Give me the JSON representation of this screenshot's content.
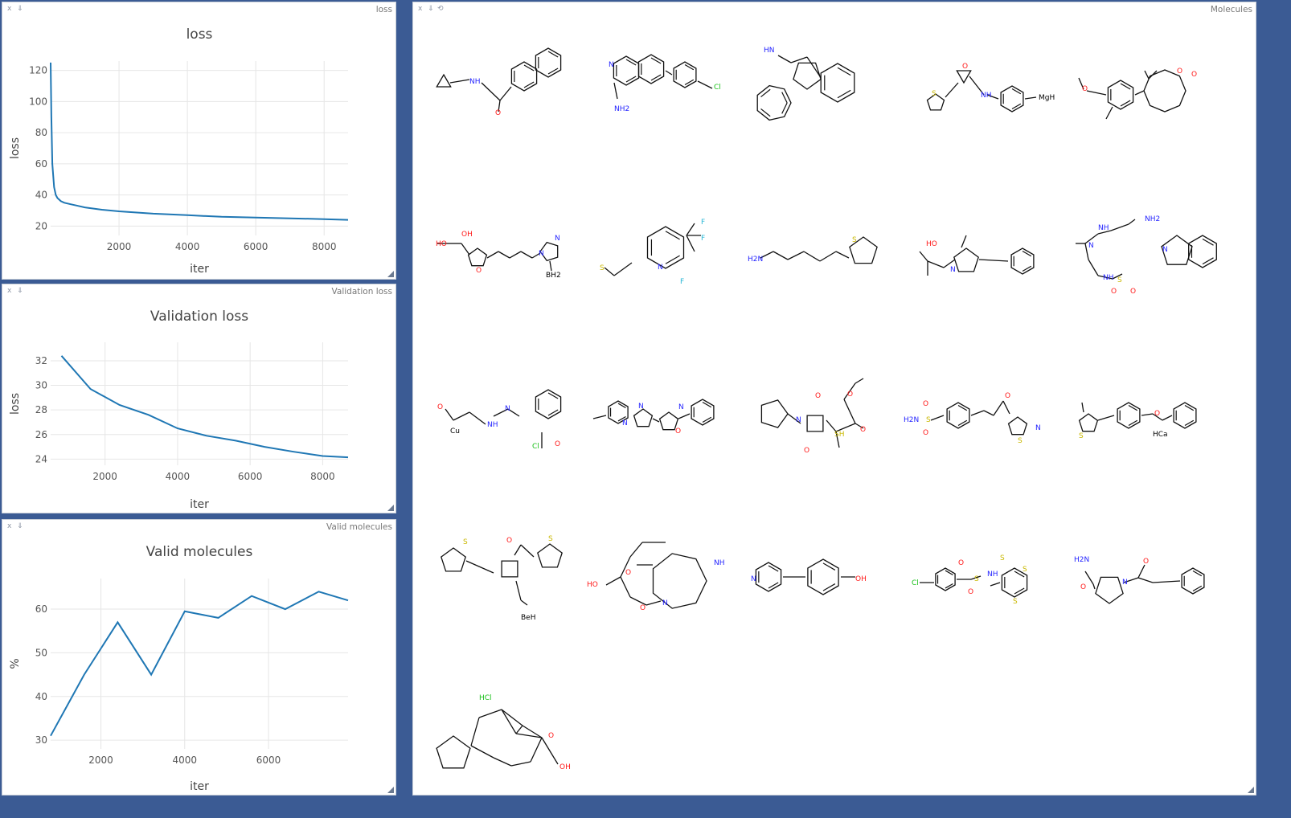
{
  "panes": {
    "loss": {
      "name": "loss"
    },
    "val": {
      "name": "Validation loss"
    },
    "valid": {
      "name": "Valid molecules"
    },
    "mol": {
      "name": "Molecules"
    }
  },
  "controls": {
    "close": "x",
    "download": "⇓",
    "reset": "⟲"
  },
  "chart_data": [
    {
      "type": "line",
      "title": "loss",
      "xlabel": "iter",
      "ylabel": "loss",
      "xlim": [
        0,
        8700
      ],
      "ylim": [
        14,
        126
      ],
      "xticks": [
        2000,
        4000,
        6000,
        8000
      ],
      "yticks": [
        20,
        40,
        60,
        80,
        100,
        120
      ],
      "grid": true,
      "color": "#1f77b4",
      "series": [
        {
          "x": [
            0,
            20,
            50,
            100,
            150,
            200,
            300,
            400,
            600,
            800,
            1000,
            1500,
            2000,
            3000,
            4000,
            5000,
            6000,
            7000,
            8000,
            8700
          ],
          "y": [
            125,
            90,
            60,
            45,
            40,
            38,
            36,
            35,
            34,
            33,
            32,
            30.5,
            29.5,
            28,
            27,
            26,
            25.5,
            25,
            24.5,
            24
          ]
        }
      ]
    },
    {
      "type": "line",
      "title": "Validation loss",
      "xlabel": "iter",
      "ylabel": "loss",
      "xlim": [
        500,
        8700
      ],
      "ylim": [
        23.5,
        33.5
      ],
      "xticks": [
        2000,
        4000,
        6000,
        8000
      ],
      "yticks": [
        24,
        26,
        28,
        30,
        32
      ],
      "grid": true,
      "color": "#1f77b4",
      "series": [
        {
          "x": [
            800,
            1600,
            2400,
            3200,
            4000,
            4800,
            5600,
            6400,
            7200,
            8000,
            8700
          ],
          "y": [
            32.4,
            29.7,
            28.4,
            27.6,
            26.5,
            25.9,
            25.5,
            25.0,
            24.6,
            24.25,
            24.15
          ]
        }
      ]
    },
    {
      "type": "line",
      "title": "Valid molecules",
      "xlabel": "iter",
      "ylabel": "%",
      "xlim": [
        800,
        7900
      ],
      "ylim": [
        28,
        67
      ],
      "xticks": [
        2000,
        4000,
        6000
      ],
      "yticks": [
        30,
        40,
        50,
        60
      ],
      "grid": true,
      "color": "#1f77b4",
      "series": [
        {
          "x": [
            800,
            1600,
            2400,
            3200,
            4000,
            4800,
            5600,
            6400,
            7200,
            7900
          ],
          "y": [
            31,
            45,
            57,
            45,
            59.5,
            58,
            63,
            60,
            64,
            62
          ]
        }
      ]
    }
  ],
  "molecules": [
    {
      "id": "m1",
      "labels": [
        "NH",
        "O"
      ]
    },
    {
      "id": "m2",
      "labels": [
        "N",
        "NH2",
        "Cl"
      ]
    },
    {
      "id": "m3",
      "labels": [
        "HN"
      ]
    },
    {
      "id": "m4",
      "labels": [
        "O",
        "S",
        "NH",
        "MgH"
      ]
    },
    {
      "id": "m5",
      "labels": [
        "O",
        "O",
        "O"
      ]
    },
    {
      "id": "m6",
      "labels": [
        "HO",
        "OH",
        "O",
        "N",
        "N",
        "BH2"
      ]
    },
    {
      "id": "m7",
      "labels": [
        "S",
        "N",
        "F",
        "F",
        "F"
      ]
    },
    {
      "id": "m8",
      "labels": [
        "H2N",
        "S"
      ]
    },
    {
      "id": "m9",
      "labels": [
        "HO",
        "N"
      ]
    },
    {
      "id": "m10",
      "labels": [
        "NH2",
        "NH",
        "N",
        "NH",
        "S",
        "N",
        "O",
        "O"
      ]
    },
    {
      "id": "m11",
      "labels": [
        "O",
        "Cu",
        "NH",
        "N",
        "Cl",
        "O"
      ]
    },
    {
      "id": "m12",
      "labels": [
        "N",
        "N",
        "O",
        "N"
      ]
    },
    {
      "id": "m13",
      "labels": [
        "N",
        "O",
        "O",
        "O",
        "O",
        "SH"
      ]
    },
    {
      "id": "m14",
      "labels": [
        "O",
        "O",
        "H2N",
        "S",
        "O",
        "S",
        "N"
      ]
    },
    {
      "id": "m15",
      "labels": [
        "S",
        "O",
        "HCa"
      ]
    },
    {
      "id": "m16",
      "labels": [
        "S",
        "O",
        "S",
        "BeH"
      ]
    },
    {
      "id": "m17",
      "labels": [
        "NH",
        "O",
        "HO",
        "O",
        "N"
      ]
    },
    {
      "id": "m18",
      "labels": [
        "N",
        "OH"
      ]
    },
    {
      "id": "m19",
      "labels": [
        "Cl",
        "O",
        "S",
        "O",
        "NH",
        "S",
        "S",
        "S"
      ]
    },
    {
      "id": "m20",
      "labels": [
        "H2N",
        "O",
        "N",
        "O"
      ]
    },
    {
      "id": "m21",
      "labels": [
        "HCl",
        "O",
        "OH"
      ]
    }
  ]
}
